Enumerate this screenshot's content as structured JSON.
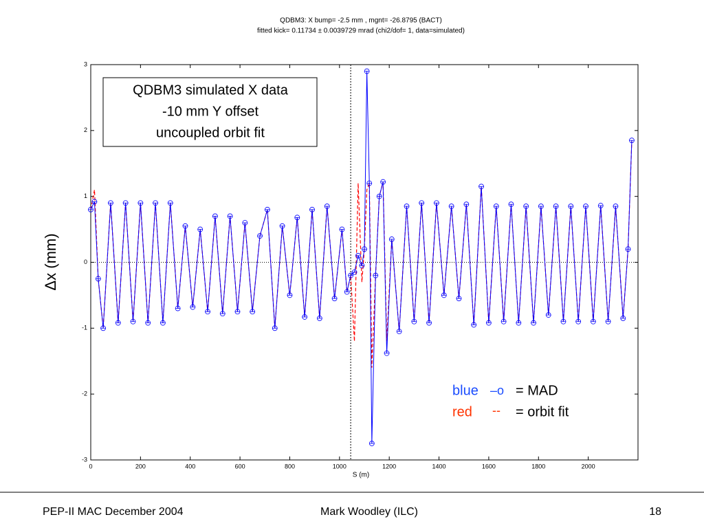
{
  "chart_data": {
    "type": "line",
    "title": "QDBM3: X bump= -2.5 mm , mgnt= -26.8795 (BACT)",
    "subtitle": "fitted kick= 0.11734 ± 0.0039729 mrad (chi2/dof= 1, data=simulated)",
    "x_label": "S (m)",
    "y_label": "Δx (mm)",
    "annotation": [
      "QDBM3 simulated X data",
      "-10 mm Y offset",
      "uncoupled orbit fit"
    ],
    "legend": [
      {
        "name": "blue",
        "symbol": "–o",
        "text": "= MAD",
        "color": "#1a4cff"
      },
      {
        "name": "red",
        "symbol": "--",
        "text": "= orbit fit",
        "color": "#ff3300"
      }
    ],
    "x": [
      0,
      15,
      30,
      50,
      80,
      110,
      140,
      170,
      200,
      230,
      260,
      290,
      320,
      350,
      380,
      410,
      440,
      470,
      500,
      530,
      560,
      590,
      620,
      650,
      680,
      710,
      740,
      770,
      800,
      830,
      860,
      890,
      920,
      950,
      980,
      1010,
      1030,
      1045,
      1060,
      1075,
      1090,
      1100,
      1110,
      1120,
      1130,
      1145,
      1160,
      1175,
      1190,
      1210,
      1240,
      1270,
      1300,
      1330,
      1360,
      1390,
      1420,
      1450,
      1480,
      1510,
      1540,
      1570,
      1600,
      1630,
      1660,
      1690,
      1720,
      1750,
      1780,
      1810,
      1840,
      1870,
      1900,
      1930,
      1960,
      1990,
      2020,
      2050,
      2080,
      2110,
      2140,
      2160,
      2175
    ],
    "series": [
      {
        "name": "MAD",
        "color": "#0000ff",
        "values": [
          0.8,
          0.92,
          -0.25,
          -1.0,
          0.9,
          -0.92,
          0.9,
          -0.9,
          0.9,
          -0.92,
          0.9,
          -0.92,
          0.9,
          -0.7,
          0.55,
          -0.68,
          0.5,
          -0.75,
          0.7,
          -0.78,
          0.7,
          -0.75,
          0.6,
          -0.75,
          0.4,
          0.8,
          -1.0,
          0.55,
          -0.5,
          0.68,
          -0.83,
          0.8,
          -0.85,
          0.85,
          -0.55,
          0.5,
          -0.45,
          -0.2,
          -0.15,
          0.1,
          -0.05,
          0.2,
          2.9,
          1.2,
          -2.75,
          -0.2,
          1.0,
          1.22,
          -1.38,
          0.35,
          -1.05,
          0.85,
          -0.9,
          0.9,
          -0.92,
          0.9,
          -0.5,
          0.85,
          -0.55,
          0.88,
          -0.95,
          1.15,
          -0.92,
          0.85,
          -0.9,
          0.88,
          -0.92,
          0.85,
          -0.92,
          0.85,
          -0.8,
          0.85,
          -0.9,
          0.85,
          -0.9,
          0.85,
          -0.9,
          0.86,
          -0.9,
          0.85,
          -0.85,
          0.2,
          1.85
        ]
      },
      {
        "name": "orbit fit",
        "color": "#ff0000",
        "values": [
          0.8,
          1.1,
          -0.25,
          -1.0,
          0.9,
          -0.92,
          0.9,
          -0.9,
          0.9,
          -0.92,
          0.9,
          -0.92,
          0.9,
          -0.7,
          0.55,
          -0.68,
          0.5,
          -0.75,
          0.7,
          -0.78,
          0.7,
          -0.75,
          0.6,
          -0.75,
          0.4,
          0.8,
          -1.0,
          0.55,
          -0.5,
          0.68,
          -0.83,
          0.8,
          -0.85,
          0.85,
          -0.55,
          0.5,
          -0.45,
          -0.2,
          -1.2,
          1.2,
          -0.3,
          0.2,
          1.1,
          1.2,
          -1.6,
          -0.2,
          1.0,
          1.22,
          -1.2,
          0.35,
          -1.05,
          0.85,
          -0.9,
          0.9,
          -0.92,
          0.9,
          -0.5,
          0.85,
          -0.55,
          0.88,
          -0.95,
          1.15,
          -0.92,
          0.85,
          -0.9,
          0.88,
          -0.92,
          0.85,
          -0.92,
          0.85,
          -0.8,
          0.85,
          -0.9,
          0.85,
          -0.9,
          0.85,
          -0.9,
          0.86,
          -0.9,
          0.85,
          -0.85,
          0.2,
          1.85
        ]
      }
    ],
    "xlim": [
      0,
      2200
    ],
    "ylim": [
      -3,
      3
    ],
    "xticks": [
      0,
      200,
      400,
      600,
      800,
      1000,
      1200,
      1400,
      1600,
      1800,
      2000
    ],
    "yticks": [
      -3,
      -2,
      -1,
      0,
      1,
      2,
      3
    ],
    "vline": 1045,
    "hline": 0
  },
  "footer": {
    "left": "PEP-II MAC December 2004",
    "center": "Mark Woodley (ILC)",
    "right": "18"
  }
}
